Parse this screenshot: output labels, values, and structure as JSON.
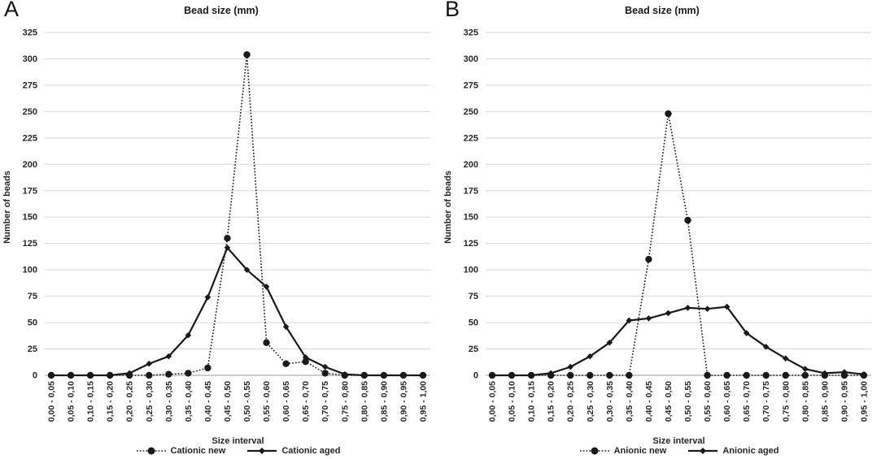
{
  "figure": {
    "background": "#ffffff",
    "series_color": "#1a1a1a",
    "grid_color": "#d6d6d6",
    "zero_line_color": "#9b9b9b",
    "text_color": "#262626"
  },
  "chart_data": [
    {
      "type": "line",
      "panel": "A",
      "title": "Bead size (mm)",
      "xlabel": "Size interval",
      "ylabel": "Number of beads",
      "ylim": [
        0,
        325
      ],
      "ytick_step": 25,
      "grid": true,
      "legend_position": "bottom",
      "categories": [
        "0,00 - 0,05",
        "0,05 - 0,10",
        "0,10 - 0,15",
        "0,15 - 0,20",
        "0,20 - 0,25",
        "0,25 - 0,30",
        "0,30 - 0,35",
        "0,35 - 0,40",
        "0,40 - 0,45",
        "0,45 - 0,50",
        "0,50 - 0,55",
        "0,55 - 0,60",
        "0,60 - 0,65",
        "0,65 - 0,70",
        "0,70 - 0,75",
        "0,75 - 0,80",
        "0,80 - 0,85",
        "0,85 - 0,90",
        "0,90 - 0,95",
        "0,95 - 1,00"
      ],
      "series": [
        {
          "name": "Cationic new",
          "marker": "circle",
          "line_style": "dotted",
          "values": [
            0,
            0,
            0,
            0,
            0,
            0,
            1,
            2,
            7,
            130,
            304,
            31,
            11,
            13,
            2,
            0,
            0,
            0,
            0,
            0
          ]
        },
        {
          "name": "Cationic aged",
          "marker": "diamond",
          "line_style": "solid",
          "values": [
            0,
            0,
            0,
            0,
            2,
            11,
            18,
            38,
            74,
            121,
            100,
            84,
            46,
            17,
            8,
            1,
            0,
            0,
            0,
            0
          ]
        }
      ]
    },
    {
      "type": "line",
      "panel": "B",
      "title": "Bead size (mm)",
      "xlabel": "Size interval",
      "ylabel": "Number of beads",
      "ylim": [
        0,
        325
      ],
      "ytick_step": 25,
      "grid": true,
      "legend_position": "bottom",
      "categories": [
        "0,00 - 0,05",
        "0,05 - 0,10",
        "0,10 - 0,15",
        "0,15 - 0,20",
        "0,20 - 0,25",
        "0,25 - 0,30",
        "0,30 - 0,35",
        "0,35 - 0,40",
        "0,40 - 0,45",
        "0,45 - 0,50",
        "0,50 - 0,55",
        "0,55 - 0,60",
        "0,60 - 0,65",
        "0,65 - 0,70",
        "0,70 - 0,75",
        "0,75 - 0,80",
        "0,80 - 0,85",
        "0,85 - 0,90",
        "0,90 - 0,95",
        "0,95 - 1,00"
      ],
      "series": [
        {
          "name": "Anionic new",
          "marker": "circle",
          "line_style": "dotted",
          "values": [
            0,
            0,
            0,
            0,
            0,
            0,
            0,
            0,
            110,
            248,
            147,
            0,
            0,
            0,
            0,
            0,
            0,
            0,
            0,
            0
          ]
        },
        {
          "name": "Anionic aged",
          "marker": "diamond",
          "line_style": "solid",
          "values": [
            0,
            0,
            0,
            2,
            8,
            18,
            31,
            52,
            54,
            59,
            64,
            63,
            65,
            40,
            27,
            16,
            6,
            2,
            3,
            1
          ]
        }
      ]
    }
  ]
}
